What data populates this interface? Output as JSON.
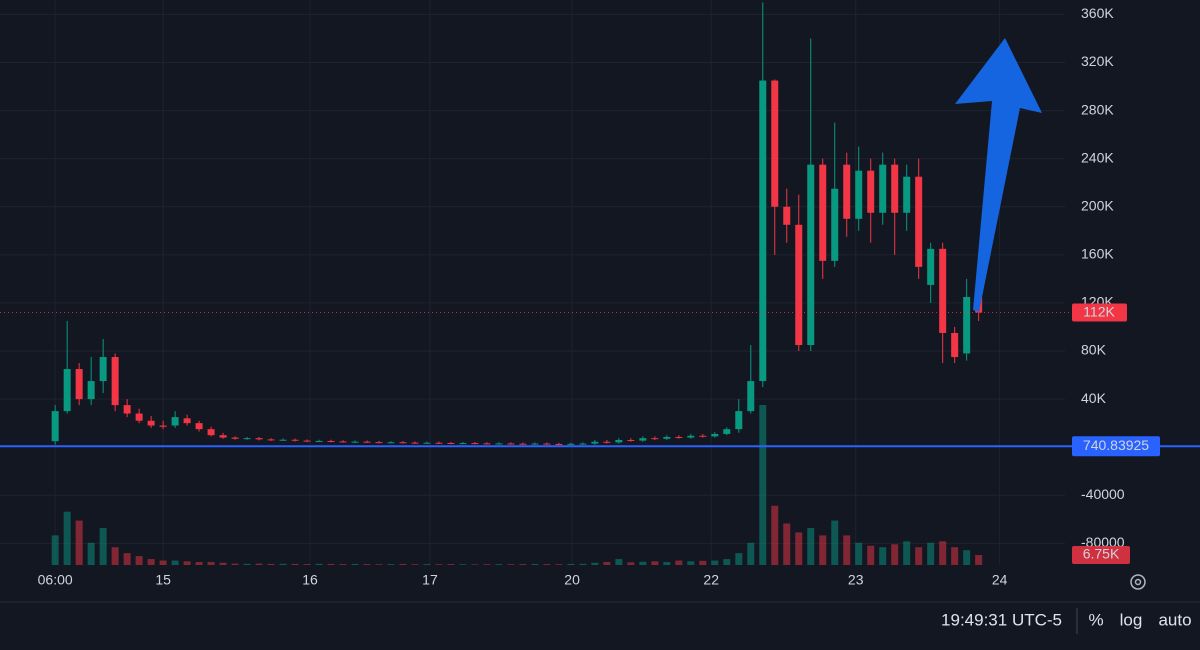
{
  "chart_data": {
    "type": "candlestick",
    "open": [
      5000,
      30000,
      65000,
      40000,
      55000,
      75000,
      35000,
      28000,
      22000,
      18000,
      18000,
      24000,
      20000,
      15000,
      10000,
      8000,
      7000,
      7500,
      6500,
      6000,
      6200,
      5500,
      5000,
      5200,
      4800,
      4500,
      4600,
      4200,
      4000,
      4100,
      3800,
      3600,
      3700,
      3500,
      3300,
      3400,
      3200,
      3000,
      3100,
      2900,
      2800,
      3000,
      2700,
      2600,
      2800,
      3000,
      4500,
      4000,
      6000,
      5500,
      7500,
      7000,
      8500,
      8000,
      9500,
      9000,
      11000,
      15000,
      30000,
      55000,
      305000,
      200000,
      185000,
      85000,
      235000,
      155000,
      235000,
      190000,
      230000,
      195000,
      235000,
      195000,
      225000,
      135000,
      165000,
      95000,
      78000,
      125000
    ],
    "high": [
      35000,
      105000,
      70000,
      75000,
      90000,
      78000,
      40000,
      32000,
      26000,
      22000,
      30000,
      27000,
      22000,
      17000,
      12000,
      9000,
      8500,
      8500,
      7500,
      7200,
      7200,
      6500,
      6200,
      6200,
      5800,
      5600,
      5600,
      5200,
      5100,
      5100,
      4800,
      4700,
      4700,
      4500,
      4400,
      4400,
      4200,
      4100,
      4100,
      3900,
      4000,
      4000,
      3700,
      3800,
      4000,
      6000,
      6000,
      7500,
      7500,
      9000,
      9000,
      10000,
      10000,
      11000,
      11000,
      12500,
      16500,
      40000,
      85000,
      370000,
      306000,
      215000,
      210000,
      340000,
      240000,
      270000,
      245000,
      250000,
      240000,
      245000,
      240000,
      235000,
      240000,
      170000,
      170000,
      100000,
      140000,
      130000
    ],
    "low": [
      2000,
      28000,
      35000,
      35000,
      45000,
      30000,
      25000,
      20000,
      16000,
      15000,
      16000,
      18000,
      13000,
      9000,
      7000,
      6200,
      6200,
      5700,
      5200,
      5200,
      4700,
      4200,
      4200,
      4000,
      3700,
      3700,
      3400,
      3200,
      3200,
      3000,
      2800,
      2800,
      2700,
      2500,
      2500,
      2400,
      2200,
      2200,
      2100,
      2000,
      2000,
      1900,
      1800,
      1800,
      2000,
      2000,
      3000,
      3000,
      4500,
      4500,
      6000,
      6000,
      7000,
      7000,
      8000,
      8000,
      10000,
      12000,
      28000,
      50000,
      160000,
      170000,
      80000,
      80000,
      140000,
      150000,
      175000,
      180000,
      170000,
      185000,
      160000,
      180000,
      140000,
      120000,
      70000,
      70000,
      72000,
      105000
    ],
    "close": [
      30000,
      65000,
      40000,
      55000,
      75000,
      35000,
      28000,
      22000,
      18000,
      17000,
      25000,
      20000,
      15000,
      10000,
      8000,
      7000,
      7500,
      6500,
      6000,
      6200,
      5500,
      5000,
      5200,
      4800,
      4500,
      4600,
      4200,
      4000,
      4100,
      3800,
      3600,
      3700,
      3500,
      3300,
      3400,
      3200,
      3000,
      3100,
      2900,
      2800,
      3000,
      2700,
      2600,
      2800,
      3000,
      4500,
      4000,
      6000,
      5500,
      7500,
      7000,
      8500,
      8000,
      9500,
      9000,
      11000,
      15000,
      30000,
      55000,
      305000,
      200000,
      185000,
      85000,
      235000,
      155000,
      215000,
      190000,
      230000,
      195000,
      235000,
      195000,
      225000,
      150000,
      165000,
      95000,
      75000,
      125000,
      112000
    ],
    "volume": [
      20000,
      36000,
      30000,
      15000,
      25000,
      12000,
      8000,
      6000,
      4000,
      3000,
      3000,
      2500,
      2000,
      2000,
      1500,
      900,
      800,
      900,
      700,
      800,
      700,
      600,
      800,
      700,
      600,
      700,
      600,
      500,
      600,
      700,
      500,
      600,
      500,
      600,
      500,
      400,
      500,
      600,
      500,
      600,
      700,
      600,
      500,
      700,
      800,
      1500,
      2000,
      4000,
      1800,
      2200,
      2500,
      2000,
      3000,
      2500,
      2800,
      3000,
      4000,
      8000,
      15000,
      108000,
      40000,
      28000,
      22000,
      25000,
      20000,
      30000,
      20000,
      15000,
      13000,
      12000,
      14000,
      16000,
      12000,
      15000,
      16000,
      12000,
      10000,
      6750
    ],
    "up_color": "#089981",
    "down_color": "#f23645",
    "ylim": [
      -98000,
      372000
    ],
    "yticks": [
      -80000,
      -40000,
      {
        "value": 40000,
        "label": "40K"
      },
      {
        "value": 80000,
        "label": "80K"
      },
      {
        "value": 120000,
        "label": "120K"
      },
      {
        "value": 160000,
        "label": "160K"
      },
      {
        "value": 200000,
        "label": "200K"
      },
      {
        "value": 240000,
        "label": "240K"
      },
      {
        "value": 280000,
        "label": "280K"
      },
      {
        "value": 320000,
        "label": "320K"
      },
      {
        "value": 360000,
        "label": "360K"
      }
    ],
    "xlim": [
      -4.6,
      84.2
    ],
    "xticks": [
      {
        "value": 0,
        "label": "06:00"
      },
      {
        "value": 9,
        "label": "15"
      },
      {
        "value": 21.25,
        "label": "16"
      },
      {
        "value": 31.25,
        "label": "17"
      },
      {
        "value": 43.1,
        "label": "20"
      },
      {
        "value": 54.7,
        "label": "22"
      },
      {
        "value": 66.75,
        "label": "23"
      },
      {
        "value": 78.75,
        "label": "24"
      }
    ],
    "reference_line": {
      "value": 740.83925,
      "label": "740.83925",
      "color": "#2962ff"
    },
    "last_price": {
      "value": 112000,
      "label": "112K"
    },
    "last_volume_label": "6.75K",
    "grid": true
  },
  "toolbar": {
    "time": "19:49:31 UTC-5",
    "percent": "%",
    "log": "log",
    "auto": "auto"
  }
}
